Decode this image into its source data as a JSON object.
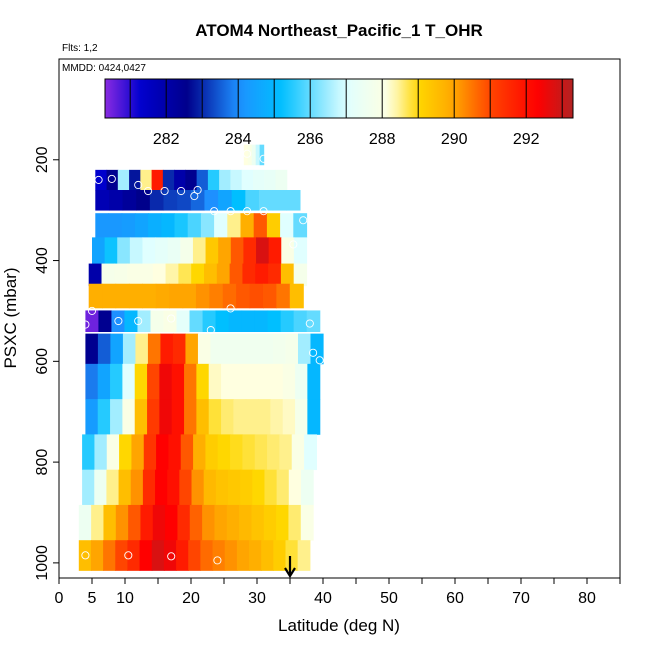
{
  "chart_data": {
    "type": "heatmap",
    "title": "ATOM4 Northeast_Pacific_1 T_OHR",
    "flights_text": "Flts: 1,2",
    "dates_text": "MMDD: 0424,0427",
    "xlabel": "Latitude (deg N)",
    "ylabel": "PSXC (mbar)",
    "xlim": [
      0,
      85
    ],
    "ylim": [
      1030,
      0
    ],
    "x_ticks": [
      0,
      5,
      10,
      20,
      30,
      40,
      50,
      60,
      70,
      80
    ],
    "y_ticks": [
      200,
      400,
      600,
      800,
      1000
    ],
    "colorbar": {
      "ticks": [
        282,
        284,
        286,
        288,
        290,
        292
      ],
      "range": [
        280.3,
        293.3
      ],
      "colors": [
        "#8a2be2",
        "#0000cd",
        "#00008b",
        "#1e90ff",
        "#00bfff",
        "#e0ffff",
        "#ffffe0",
        "#ffd700",
        "#ffa500",
        "#ff4500",
        "#ff0000",
        "#b22222"
      ]
    },
    "color_stops": [
      [
        280.3,
        "#8a2be2"
      ],
      [
        281.3,
        "#0000cd"
      ],
      [
        282.6,
        "#00008b"
      ],
      [
        284.0,
        "#1e90ff"
      ],
      [
        285.2,
        "#00bfff"
      ],
      [
        287.0,
        "#e0ffff"
      ],
      [
        288.2,
        "#ffffe0"
      ],
      [
        289.0,
        "#ffd700"
      ],
      [
        290.0,
        "#ffa500"
      ],
      [
        291.0,
        "#ff4500"
      ],
      [
        292.3,
        "#ff0000"
      ],
      [
        293.3,
        "#b22222"
      ]
    ],
    "layers": [
      {
        "p": 190,
        "h": 40,
        "x0": 28.0,
        "x1": 31.0,
        "values": [
          288.2,
          288.0,
          287.5,
          286.8,
          286.0
        ]
      },
      {
        "p": 240,
        "h": 40,
        "x0": 5.5,
        "x1": 34.5,
        "values": [
          281.3,
          282.5,
          286.5,
          282.8,
          288.5,
          291.8,
          283.0,
          282.0,
          282.5,
          283.5,
          285.5,
          286.5,
          286.8,
          287.0,
          287.2,
          287.3,
          287.5
        ]
      },
      {
        "p": 280,
        "h": 40,
        "x0": 5.5,
        "x1": 36.5,
        "values": [
          281.8,
          282.0,
          282.3,
          282.6,
          283.0,
          283.2,
          283.3,
          283.6,
          284.0,
          284.5,
          285.2,
          285.8,
          286.0,
          286.0,
          286.0
        ]
      },
      {
        "p": 330,
        "h": 48,
        "x0": 5.5,
        "x1": 37.5,
        "values": [
          284.2,
          284.2,
          284.3,
          284.5,
          284.8,
          285.0,
          285.4,
          285.8,
          286.3,
          287.0,
          288.5,
          289.8,
          290.8,
          289.2,
          287.0,
          286.0
        ]
      },
      {
        "p": 380,
        "h": 52,
        "x0": 5.0,
        "x1": 37.5,
        "values": [
          284.5,
          285.3,
          286.3,
          286.8,
          287.0,
          287.2,
          287.4,
          287.8,
          288.5,
          289.3,
          290.0,
          290.8,
          291.5,
          292.8,
          291.8,
          288.0,
          287.0
        ]
      },
      {
        "p": 428,
        "h": 44,
        "x0": 4.5,
        "x1": 37.5,
        "values": [
          282.0,
          287.8,
          287.9,
          288.0,
          288.0,
          288.2,
          288.4,
          288.7,
          289.0,
          289.5,
          290.0,
          290.8,
          291.5,
          291.8,
          291.5,
          289.5,
          287.8
        ]
      },
      {
        "p": 470,
        "h": 48,
        "x0": 4.5,
        "x1": 37.0,
        "values": [
          289.8,
          289.8,
          289.8,
          289.8,
          289.8,
          289.9,
          290.0,
          290.0,
          290.2,
          290.4,
          290.6,
          290.8,
          290.9,
          290.8,
          290.5,
          289.5
        ]
      },
      {
        "p": 520,
        "h": 42,
        "x0": 4.0,
        "x1": 39.5,
        "values": [
          280.5,
          282.5,
          284.0,
          285.0,
          286.5,
          287.8,
          288.0,
          287.2,
          286.0,
          285.5,
          285.2,
          285.0,
          285.0,
          285.0,
          285.2,
          285.5,
          285.8,
          286.0
        ]
      },
      {
        "p": 575,
        "h": 60,
        "x0": 4.0,
        "x1": 40.0,
        "values": [
          282.5,
          283.5,
          284.5,
          286.5,
          288.5,
          290.5,
          291.8,
          291.5,
          290.0,
          288.0,
          287.6,
          287.6,
          287.6,
          287.6,
          287.6,
          287.7,
          287.8,
          286.5,
          285.0
        ]
      },
      {
        "p": 640,
        "h": 70,
        "x0": 4.0,
        "x1": 39.5,
        "values": [
          283.8,
          284.5,
          285.5,
          287.0,
          289.0,
          291.0,
          292.5,
          292.0,
          290.5,
          289.0,
          288.3,
          288.2,
          288.2,
          288.2,
          288.2,
          288.2,
          288.0,
          287.5,
          285.0
        ]
      },
      {
        "p": 710,
        "h": 70,
        "x0": 4.0,
        "x1": 39.5,
        "values": [
          284.3,
          285.5,
          286.5,
          288.0,
          289.5,
          291.2,
          292.5,
          292.0,
          290.5,
          289.5,
          288.8,
          288.6,
          288.5,
          288.5,
          288.5,
          288.4,
          288.3,
          287.8,
          285.0
        ]
      },
      {
        "p": 780,
        "h": 70,
        "x0": 3.5,
        "x1": 39.0,
        "values": [
          285.5,
          286.5,
          288.0,
          289.0,
          290.0,
          291.3,
          292.3,
          292.0,
          290.8,
          289.8,
          289.2,
          289.0,
          288.9,
          288.8,
          288.7,
          288.6,
          288.5,
          288.0,
          287.0
        ]
      },
      {
        "p": 850,
        "h": 70,
        "x0": 3.5,
        "x1": 38.5,
        "values": [
          286.5,
          287.5,
          288.5,
          289.5,
          290.2,
          291.5,
          292.3,
          292.0,
          291.0,
          290.2,
          289.6,
          289.4,
          289.3,
          289.2,
          289.0,
          288.8,
          288.6,
          288.2,
          287.5
        ]
      },
      {
        "p": 920,
        "h": 70,
        "x0": 3.0,
        "x1": 38.5,
        "values": [
          287.5,
          288.5,
          289.5,
          290.2,
          290.8,
          291.8,
          292.5,
          292.3,
          291.5,
          290.7,
          290.2,
          290.0,
          289.8,
          289.6,
          289.4,
          289.2,
          289.0,
          288.6,
          288.0
        ]
      },
      {
        "p": 985,
        "h": 60,
        "x0": 3.0,
        "x1": 38.0,
        "values": [
          289.5,
          290.0,
          290.5,
          291.0,
          291.5,
          292.3,
          292.8,
          292.5,
          291.8,
          291.0,
          290.6,
          290.4,
          290.2,
          290.0,
          289.8,
          289.5,
          289.2,
          288.8,
          288.5
        ]
      }
    ],
    "points": [
      {
        "lat": 28.5,
        "p": 188
      },
      {
        "lat": 31.0,
        "p": 198
      },
      {
        "lat": 6.0,
        "p": 240
      },
      {
        "lat": 8.0,
        "p": 238
      },
      {
        "lat": 12.0,
        "p": 250
      },
      {
        "lat": 13.5,
        "p": 262
      },
      {
        "lat": 16.0,
        "p": 262
      },
      {
        "lat": 18.5,
        "p": 262
      },
      {
        "lat": 21.0,
        "p": 260
      },
      {
        "lat": 20.5,
        "p": 272
      },
      {
        "lat": 23.5,
        "p": 302
      },
      {
        "lat": 26.0,
        "p": 302
      },
      {
        "lat": 28.5,
        "p": 302
      },
      {
        "lat": 31.0,
        "p": 302
      },
      {
        "lat": 37.0,
        "p": 320
      },
      {
        "lat": 35.5,
        "p": 368
      },
      {
        "lat": 5.0,
        "p": 500
      },
      {
        "lat": 26.0,
        "p": 495
      },
      {
        "lat": 4.0,
        "p": 527
      },
      {
        "lat": 9.0,
        "p": 520
      },
      {
        "lat": 12.0,
        "p": 520
      },
      {
        "lat": 17.0,
        "p": 515
      },
      {
        "lat": 23.0,
        "p": 538
      },
      {
        "lat": 38.0,
        "p": 525
      },
      {
        "lat": 38.5,
        "p": 583
      },
      {
        "lat": 39.5,
        "p": 598
      },
      {
        "lat": 4.0,
        "p": 985
      },
      {
        "lat": 10.5,
        "p": 985
      },
      {
        "lat": 17.0,
        "p": 987
      },
      {
        "lat": 24.0,
        "p": 995
      }
    ],
    "arrow_lat": 35
  }
}
